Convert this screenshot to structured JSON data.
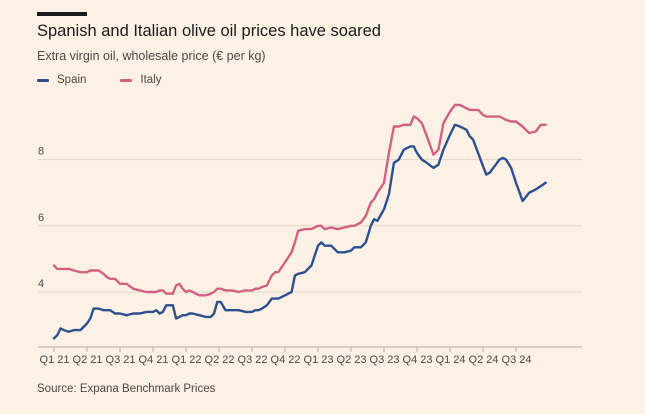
{
  "title": "Spanish and Italian olive oil prices have soared",
  "subtitle": "Extra virgin oil, wholesale price (€ per kg)",
  "source": "Source: Expana Benchmark Prices",
  "chart_data": {
    "type": "line",
    "title": "Spanish and Italian olive oil prices have soared",
    "subtitle": "Extra virgin oil, wholesale price (€ per kg)",
    "ylim": [
      2.4,
      9.8
    ],
    "yticks": [
      4,
      6,
      8
    ],
    "grid": true,
    "legend_placement": "top-left",
    "xlim": [
      0,
      16
    ],
    "x_unit": "quarters since Q1 2021",
    "xtick_labels": [
      "Q1 21",
      "Q2 21",
      "Q3 21",
      "Q4 21",
      "Q1 22",
      "Q2 22",
      "Q3 22",
      "Q4 22",
      "Q1 23",
      "Q2 23",
      "Q3 23",
      "Q4 23",
      "Q1 24",
      "Q2 24",
      "Q3 24"
    ],
    "x": [
      0,
      0.1,
      0.2,
      0.3,
      0.45,
      0.6,
      0.8,
      1.0,
      1.1,
      1.2,
      1.35,
      1.5,
      1.6,
      1.7,
      1.85,
      2.0,
      2.2,
      2.4,
      2.6,
      2.8,
      3.0,
      3.1,
      3.2,
      3.3,
      3.4,
      3.5,
      3.6,
      3.7,
      3.8,
      3.9,
      4.0,
      4.1,
      4.2,
      4.4,
      4.6,
      4.75,
      4.85,
      4.95,
      5.05,
      5.2,
      5.4,
      5.6,
      5.8,
      6.0,
      6.1,
      6.2,
      6.3,
      6.45,
      6.6,
      6.7,
      6.8,
      7.0,
      7.2,
      7.3,
      7.4,
      7.6,
      7.8,
      8.0,
      8.1,
      8.2,
      8.4,
      8.6,
      8.8,
      9.0,
      9.1,
      9.2,
      9.3,
      9.45,
      9.6,
      9.7,
      9.8,
      10.0,
      10.15,
      10.3,
      10.45,
      10.6,
      10.7,
      10.8,
      10.9,
      11.0,
      11.15,
      11.3,
      11.5,
      11.65,
      11.8,
      12.0,
      12.15,
      12.3,
      12.5,
      12.6,
      12.7,
      12.85,
      13.0,
      13.1,
      13.2,
      13.35,
      13.5,
      13.6,
      13.7,
      13.85,
      14.0,
      14.2,
      14.4,
      14.6,
      14.75,
      14.9
    ],
    "series": [
      {
        "name": "Spain",
        "color": "#2c4f8d",
        "values": [
          2.6,
          2.7,
          2.9,
          2.85,
          2.8,
          2.85,
          2.85,
          3.05,
          3.2,
          3.5,
          3.5,
          3.45,
          3.45,
          3.45,
          3.35,
          3.35,
          3.3,
          3.35,
          3.35,
          3.4,
          3.4,
          3.45,
          3.35,
          3.4,
          3.6,
          3.6,
          3.6,
          3.2,
          3.25,
          3.3,
          3.3,
          3.35,
          3.35,
          3.3,
          3.25,
          3.25,
          3.35,
          3.7,
          3.7,
          3.45,
          3.45,
          3.45,
          3.4,
          3.4,
          3.45,
          3.45,
          3.5,
          3.6,
          3.8,
          3.8,
          3.8,
          3.9,
          4.0,
          4.5,
          4.55,
          4.6,
          4.8,
          5.4,
          5.5,
          5.4,
          5.4,
          5.2,
          5.2,
          5.25,
          5.35,
          5.35,
          5.35,
          5.5,
          6.0,
          6.2,
          6.15,
          6.5,
          6.95,
          7.9,
          8.0,
          8.3,
          8.35,
          8.4,
          8.4,
          8.2,
          8.0,
          7.9,
          7.75,
          7.85,
          8.3,
          8.75,
          9.05,
          9.0,
          8.9,
          8.7,
          8.6,
          8.2,
          7.8,
          7.55,
          7.6,
          7.8,
          8.0,
          8.05,
          8.0,
          7.75,
          7.3,
          6.75,
          7.0,
          7.1,
          7.2,
          7.3
        ]
      },
      {
        "name": "Italy",
        "color": "#d26082",
        "values": [
          4.8,
          4.7,
          4.7,
          4.7,
          4.7,
          4.65,
          4.6,
          4.6,
          4.65,
          4.65,
          4.65,
          4.55,
          4.45,
          4.4,
          4.4,
          4.25,
          4.25,
          4.1,
          4.05,
          4.0,
          4.0,
          4.0,
          4.05,
          4.05,
          3.95,
          3.95,
          3.95,
          4.2,
          4.25,
          4.1,
          4.0,
          4.05,
          4.0,
          3.9,
          3.9,
          3.95,
          4.0,
          4.1,
          4.1,
          4.05,
          4.05,
          4.0,
          4.05,
          4.05,
          4.1,
          4.1,
          4.15,
          4.2,
          4.5,
          4.6,
          4.6,
          4.9,
          5.2,
          5.5,
          5.85,
          5.9,
          5.9,
          6.0,
          6.0,
          5.9,
          5.95,
          5.9,
          5.95,
          6.0,
          6.0,
          6.05,
          6.1,
          6.3,
          6.7,
          6.8,
          7.0,
          7.3,
          8.2,
          9.0,
          9.0,
          9.05,
          9.05,
          9.05,
          9.3,
          9.25,
          9.1,
          8.7,
          8.15,
          8.3,
          9.1,
          9.45,
          9.65,
          9.65,
          9.55,
          9.5,
          9.5,
          9.5,
          9.35,
          9.3,
          9.3,
          9.3,
          9.3,
          9.25,
          9.2,
          9.15,
          9.15,
          9.0,
          8.8,
          8.85,
          9.05,
          9.05
        ]
      }
    ]
  }
}
